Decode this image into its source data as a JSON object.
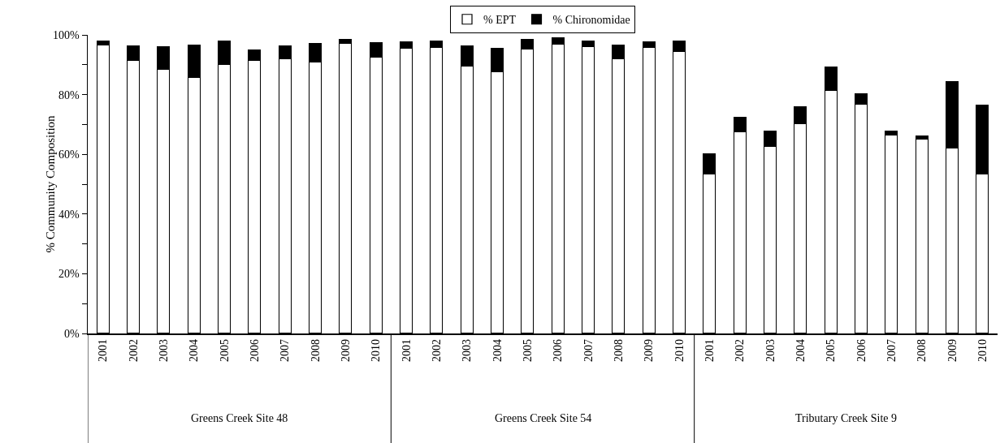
{
  "chart_data": {
    "type": "bar",
    "stacked": true,
    "ylabel": "% Community Composition",
    "categories": [
      "2001",
      "2002",
      "2003",
      "2004",
      "2005",
      "2006",
      "2007",
      "2008",
      "2009",
      "2010",
      "2001",
      "2002",
      "2003",
      "2004",
      "2005",
      "2006",
      "2007",
      "2008",
      "2009",
      "2010",
      "2001",
      "2002",
      "2003",
      "2004",
      "2005",
      "2006",
      "2007",
      "2008",
      "2009",
      "2010"
    ],
    "series": [
      {
        "name": "% EPT",
        "color": "#ffffff",
        "values": [
          96.5,
          91.5,
          88.5,
          85.7,
          90,
          91.5,
          92,
          91,
          97.3,
          92.5,
          95.5,
          95.7,
          89.5,
          87.7,
          95.3,
          97,
          96,
          92,
          95.7,
          94.5,
          53.5,
          67.5,
          62.8,
          70.3,
          81.5,
          76.7,
          66.5,
          65.2,
          62.2,
          53.3
        ]
      },
      {
        "name": "% Chironomidae",
        "color": "#000000",
        "values": [
          1.5,
          4.8,
          7.5,
          11,
          8,
          3.5,
          4.3,
          6,
          1.2,
          5,
          2.2,
          2.3,
          6.8,
          7.8,
          3.2,
          2,
          2,
          4.7,
          2,
          3.5,
          6.8,
          4.8,
          4.9,
          5.7,
          7.7,
          3.6,
          1.3,
          1,
          22.1,
          23.2
        ]
      }
    ],
    "annotations": [
      "Greens Creek Site 48",
      "Greens Creek Site 54",
      "Tributary Creek Site 9"
    ],
    "ylim": [
      0,
      100
    ],
    "yticks": [
      {
        "value": 0,
        "label": "0%"
      },
      {
        "value": 10,
        "label": null
      },
      {
        "value": 20,
        "label": "20%"
      },
      {
        "value": 30,
        "label": null
      },
      {
        "value": 40,
        "label": "40%"
      },
      {
        "value": 50,
        "label": null
      },
      {
        "value": 60,
        "label": "60%"
      },
      {
        "value": 70,
        "label": null
      },
      {
        "value": 80,
        "label": "80%"
      },
      {
        "value": 90,
        "label": null
      },
      {
        "value": 100,
        "label": "100%"
      }
    ],
    "grid": false,
    "legend": "top"
  }
}
